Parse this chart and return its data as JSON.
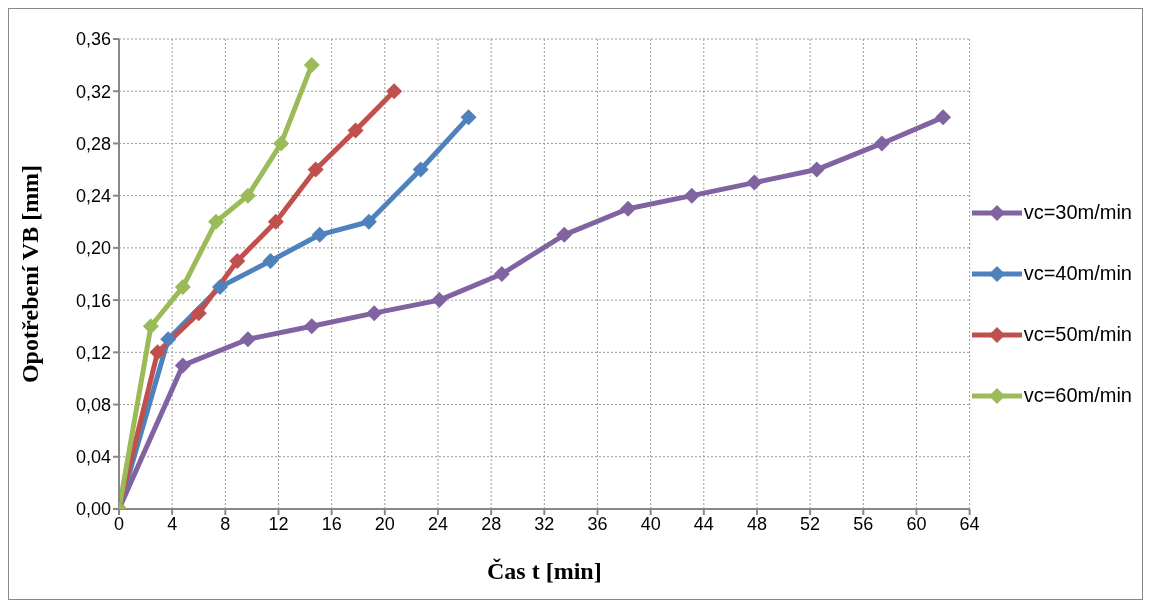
{
  "chart_data": {
    "type": "line",
    "xlabel": "Čas t [min]",
    "ylabel": "Opotřebení VB [mm]",
    "xlim": [
      0,
      64
    ],
    "xticks": [
      0,
      4,
      8,
      12,
      16,
      20,
      24,
      28,
      32,
      36,
      40,
      44,
      48,
      52,
      56,
      60,
      64
    ],
    "ylim": [
      0,
      0.36
    ],
    "yticks": [
      {
        "value": 0,
        "label": "0,00"
      },
      {
        "value": 0.04,
        "label": "0,04"
      },
      {
        "value": 0.08,
        "label": "0,08"
      },
      {
        "value": 0.12,
        "label": "0,12"
      },
      {
        "value": 0.16,
        "label": "0,16"
      },
      {
        "value": 0.2,
        "label": "0,20"
      },
      {
        "value": 0.24,
        "label": "0,24"
      },
      {
        "value": 0.28,
        "label": "0,28"
      },
      {
        "value": 0.32,
        "label": "0,32"
      },
      {
        "value": 0.36,
        "label": "0,36"
      }
    ],
    "grid": true,
    "legend": "right",
    "marker": "diamond",
    "line_style": "solid",
    "series": [
      {
        "name": "vc=30m/min",
        "color": "#8064a2",
        "x": [
          0,
          4.8,
          9.7,
          14.5,
          19.2,
          24.1,
          28.8,
          33.5,
          38.3,
          43.1,
          47.8,
          52.5,
          57.4,
          62
        ],
        "values": [
          0,
          0.11,
          0.13,
          0.14,
          0.15,
          0.16,
          0.18,
          0.21,
          0.23,
          0.24,
          0.25,
          0.26,
          0.28,
          0.3
        ]
      },
      {
        "name": "vc=40m/min",
        "color": "#4f81bd",
        "x": [
          0,
          3.7,
          7.6,
          11.4,
          15.1,
          18.8,
          22.7,
          26.3
        ],
        "values": [
          0,
          0.13,
          0.17,
          0.19,
          0.21,
          0.22,
          0.26,
          0.3
        ]
      },
      {
        "name": "vc=50m/min",
        "color": "#c0504d",
        "x": [
          0,
          2.9,
          6.0,
          8.9,
          11.8,
          14.8,
          17.8,
          20.7
        ],
        "values": [
          0,
          0.12,
          0.15,
          0.19,
          0.22,
          0.26,
          0.29,
          0.32
        ]
      },
      {
        "name": "vc=60m/min",
        "color": "#9bbb59",
        "x": [
          0,
          2.4,
          4.8,
          7.3,
          9.7,
          12.2,
          14.5
        ],
        "values": [
          0,
          0.14,
          0.17,
          0.22,
          0.24,
          0.28,
          0.34
        ]
      }
    ]
  }
}
